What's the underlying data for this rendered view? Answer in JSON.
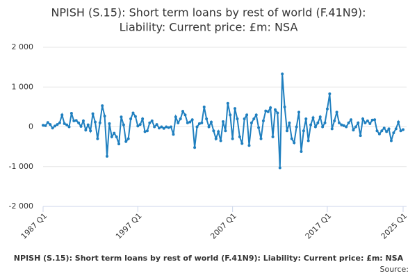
{
  "chart_data": {
    "type": "line",
    "title": [
      "NPISH (S.15): Short term loans by rest of world (F.41N9):",
      "Liability: Current price: £m: NSA"
    ],
    "x_label": "NPISH (S.15): Short term loans by rest of world (F.41N9): Liability: Current price: £m: NSA",
    "source": "Source:",
    "categories": [
      "1987 Q1",
      null,
      null,
      null,
      null,
      null,
      null,
      null,
      null,
      null,
      null,
      null,
      null,
      null,
      null,
      null,
      null,
      null,
      null,
      null,
      null,
      null,
      null,
      null,
      null,
      null,
      null,
      null,
      null,
      null,
      null,
      null,
      null,
      null,
      null,
      null,
      null,
      null,
      null,
      null,
      "1997 Q1",
      null,
      null,
      null,
      null,
      null,
      null,
      null,
      null,
      null,
      null,
      null,
      null,
      null,
      null,
      null,
      null,
      null,
      null,
      null,
      null,
      null,
      null,
      null,
      null,
      null,
      null,
      null,
      null,
      null,
      null,
      null,
      null,
      null,
      null,
      null,
      null,
      null,
      null,
      null,
      "2007 Q1",
      null,
      null,
      null,
      null,
      null,
      null,
      null,
      null,
      null,
      null,
      null,
      null,
      null,
      null,
      null,
      null,
      null,
      null,
      null,
      null,
      null,
      null,
      null,
      null,
      null,
      null,
      null,
      null,
      null,
      null,
      null,
      null,
      null,
      null,
      null,
      null,
      null,
      null,
      null,
      "2017 Q1",
      null,
      null,
      null,
      null,
      null,
      null,
      null,
      null,
      null,
      null,
      null,
      null,
      null,
      null,
      null,
      null,
      null,
      null,
      null,
      null,
      null,
      null,
      null,
      null,
      null,
      null,
      null,
      null,
      null,
      null,
      null,
      "2025 Q1"
    ],
    "series": [
      {
        "name": "NPISH",
        "color": "#1f7fbf",
        "values": [
          40,
          30,
          110,
          60,
          -30,
          20,
          60,
          100,
          300,
          80,
          50,
          0,
          340,
          150,
          160,
          100,
          10,
          150,
          -80,
          50,
          -100,
          330,
          120,
          -300,
          100,
          530,
          270,
          -740,
          80,
          -250,
          -160,
          -250,
          -430,
          250,
          50,
          -370,
          -300,
          200,
          350,
          260,
          20,
          60,
          200,
          -120,
          -100,
          100,
          150,
          0,
          60,
          -30,
          0,
          -40,
          0,
          -20,
          0,
          -190,
          250,
          100,
          200,
          390,
          300,
          100,
          120,
          180,
          -520,
          0,
          80,
          100,
          500,
          200,
          0,
          120,
          -100,
          -300,
          -120,
          -350,
          130,
          -100,
          590,
          300,
          -300,
          460,
          200,
          -250,
          -420,
          200,
          300,
          -470,
          100,
          200,
          300,
          -20,
          -300,
          150,
          400,
          380,
          480,
          -250,
          430,
          350,
          -1030,
          1330,
          500,
          -100,
          100,
          -300,
          -400,
          0,
          370,
          -620,
          -100,
          200,
          -350,
          50,
          230,
          0,
          100,
          250,
          0,
          100,
          450,
          830,
          -50,
          150,
          370,
          100,
          50,
          30,
          0,
          100,
          180,
          -80,
          0,
          100,
          -220,
          200,
          100,
          150,
          80,
          170,
          180,
          -100,
          -180,
          -100,
          -30,
          -120,
          -50,
          -350,
          -150,
          -50,
          120,
          -100,
          -70
        ]
      }
    ],
    "ylim": [
      -2000,
      2000
    ],
    "yticks": [
      {
        "value": -2000,
        "label": "-2 000"
      },
      {
        "value": -1000,
        "label": "-1 000"
      },
      0,
      {
        "value": 1000,
        "label": "1 000"
      },
      {
        "value": 2000,
        "label": "2 000"
      }
    ],
    "grid": true
  }
}
